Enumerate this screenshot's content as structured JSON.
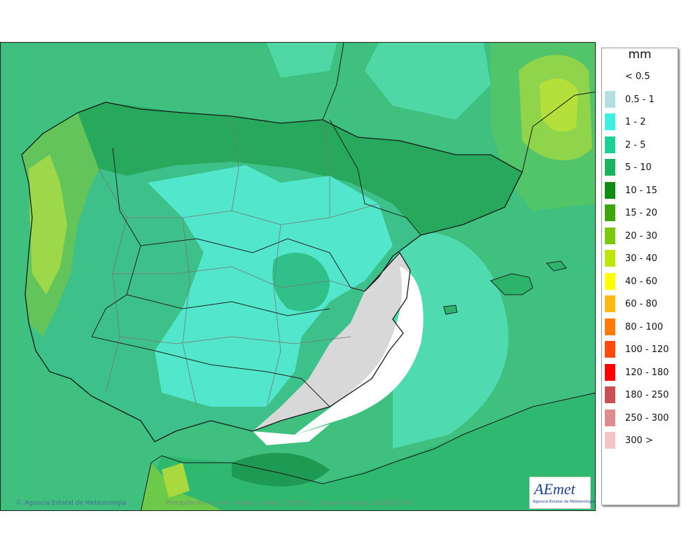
{
  "legend": {
    "title": "mm",
    "classes": [
      {
        "label": "< 0.5",
        "color": "#ffffff"
      },
      {
        "label": "0.5 - 1",
        "color": "#b4dfe2"
      },
      {
        "label": "1 - 2",
        "color": "#3ff0e0"
      },
      {
        "label": "2 - 5",
        "color": "#1fcf93"
      },
      {
        "label": "5 - 10",
        "color": "#1bb35d"
      },
      {
        "label": "10 - 15",
        "color": "#118c12"
      },
      {
        "label": "15 - 20",
        "color": "#3ea50f"
      },
      {
        "label": "20 - 30",
        "color": "#7bc80e"
      },
      {
        "label": "30 - 40",
        "color": "#bde50c"
      },
      {
        "label": "40 - 60",
        "color": "#ffff00"
      },
      {
        "label": "60 - 80",
        "color": "#ffb814"
      },
      {
        "label": "80 - 100",
        "color": "#ff7a0b"
      },
      {
        "label": "100 - 120",
        "color": "#ff4a0b"
      },
      {
        "label": "120 - 180",
        "color": "#ff0000"
      },
      {
        "label": "180 - 250",
        "color": "#c94f52"
      },
      {
        "label": "250 - 300",
        "color": "#dd8d8d"
      },
      {
        "label": "300 >",
        "color": "#f2c6c6"
      }
    ]
  },
  "map": {
    "credit": "Agencia Estatal de Meteorología",
    "caption": "Precipitación en 24 h media. Validez: 2026012... Pasada modelo: 2026012300",
    "colors": {
      "sea": "#3cbf7c",
      "sea_light": "#5fe6c6",
      "land_base": "#2fb876",
      "mountain": "#1f9a52",
      "atlantic_band": "#8cd94a",
      "dry_zone": "#f4f4f4",
      "relief_gray": "#c7c7c7"
    }
  },
  "logo": {
    "text": "AEmet",
    "subtitle": "Agencia Estatal de Meteorología"
  }
}
